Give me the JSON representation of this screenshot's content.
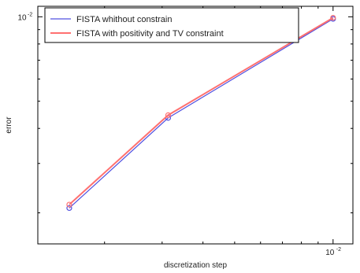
{
  "chart_data": {
    "type": "line",
    "xlabel": "discretization step",
    "ylabel": "error",
    "x_scale": "log",
    "y_scale": "log",
    "xlim": [
      0.00125,
      0.0115
    ],
    "ylim": [
      0.00155,
      0.0109
    ],
    "grid": false,
    "legend_position": "top-left",
    "tick_labels": {
      "x": [
        {
          "value": 0.01,
          "base": "10",
          "exponent": "-2"
        }
      ],
      "y": [
        {
          "value": 0.01,
          "base": "10",
          "exponent": "-2"
        }
      ]
    },
    "series": [
      {
        "name": "FISTA whithout constrain",
        "color": "#5050e0",
        "marker": "circle",
        "x": [
          0.00156,
          0.00313,
          0.01
        ],
        "y": [
          0.00208,
          0.00436,
          0.00983
        ]
      },
      {
        "name": "FISTA with positivity and TV constraint",
        "color": "#ff7070",
        "marker": "circle",
        "x": [
          0.00156,
          0.00313,
          0.01
        ],
        "y": [
          0.00214,
          0.00446,
          0.00992
        ]
      }
    ]
  }
}
